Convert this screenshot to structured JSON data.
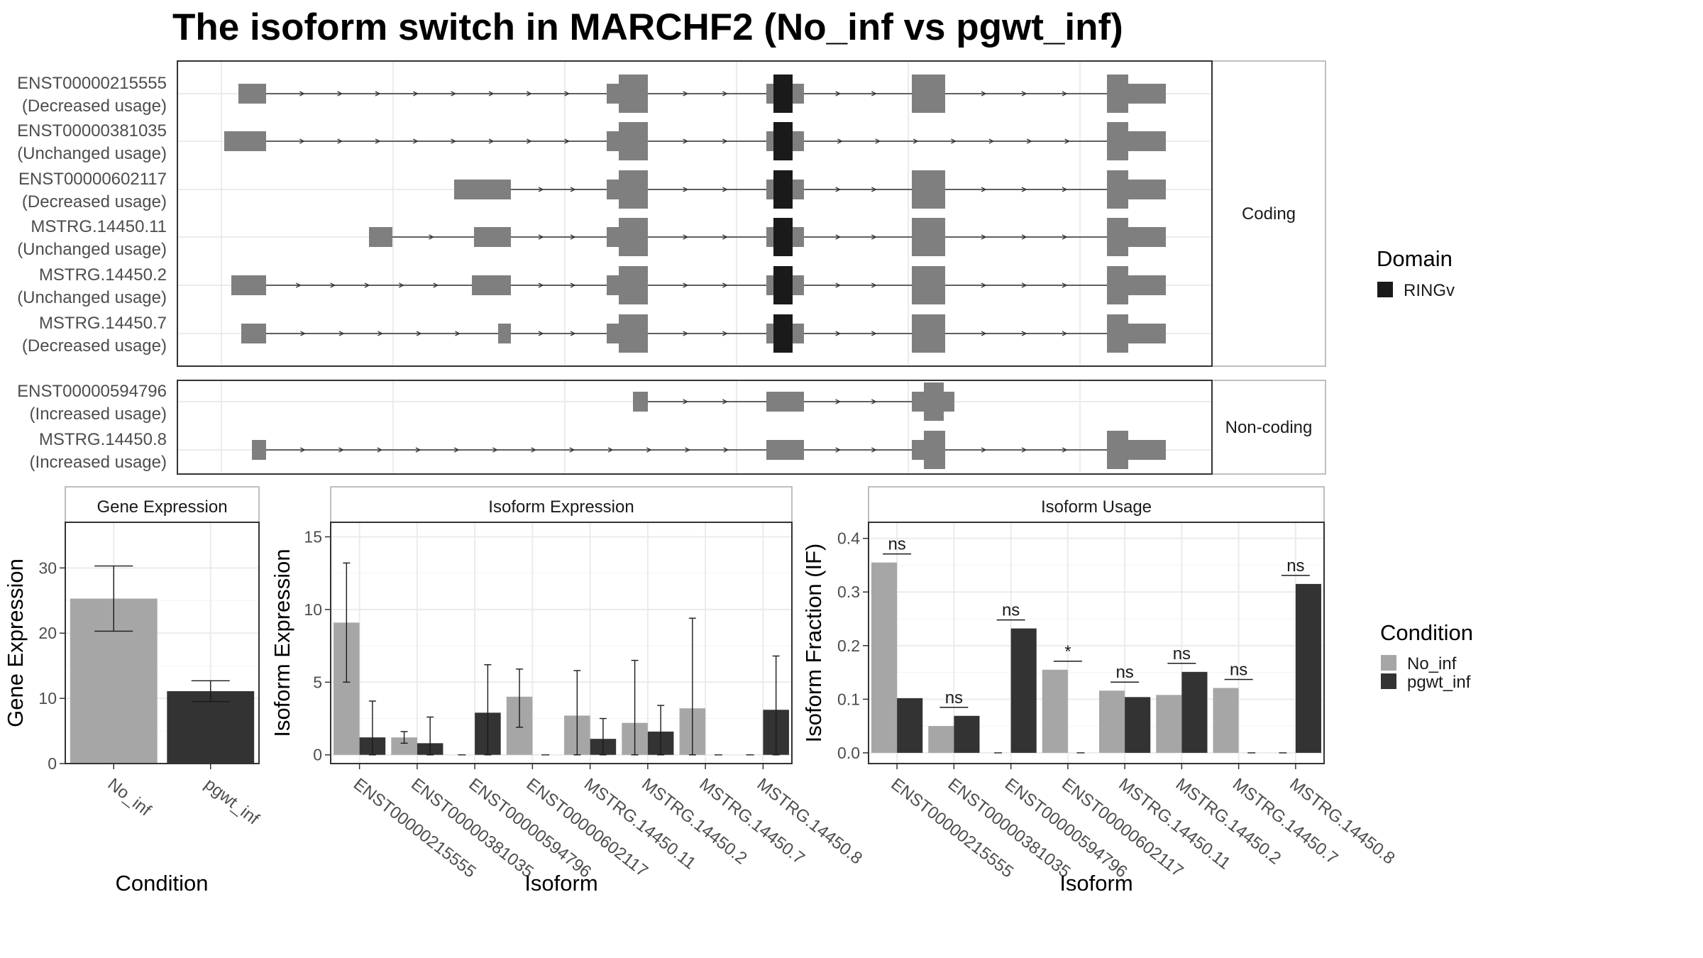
{
  "title": "The isoform switch in MARCHF2 (No_inf vs pgwt_inf)",
  "colors": {
    "exon": "#7f7f7f",
    "domain": "#1a1a1a",
    "no_inf": "#a6a6a6",
    "pgwt_inf": "#333333",
    "grid": "#ebebeb",
    "panel_border": "#333333",
    "strip_border": "#aaaaaa"
  },
  "structure": {
    "coding_label": "Coding",
    "noncoding_label": "Non-coding",
    "domain_legend": {
      "title": "Domain",
      "items": [
        {
          "name": "RINGv"
        }
      ]
    },
    "coding": [
      {
        "id": "ENST00000215555",
        "status": "(Decreased usage)"
      },
      {
        "id": "ENST00000381035",
        "status": "(Unchanged usage)"
      },
      {
        "id": "ENST00000602117",
        "status": "(Decreased usage)"
      },
      {
        "id": "MSTRG.14450.11",
        "status": "(Unchanged usage)"
      },
      {
        "id": "MSTRG.14450.2",
        "status": "(Unchanged usage)"
      },
      {
        "id": "MSTRG.14450.7",
        "status": "(Decreased usage)"
      }
    ],
    "noncoding": [
      {
        "id": "ENST00000594796",
        "status": "(Increased usage)"
      },
      {
        "id": "MSTRG.14450.8",
        "status": "(Increased usage)"
      }
    ]
  },
  "chart_data": [
    {
      "type": "bar",
      "title": "Gene Expression",
      "xlabel": "Condition",
      "ylabel": "Gene Expression",
      "categories": [
        "No_inf",
        "pgwt_inf"
      ],
      "values": [
        25.3,
        11.1
      ],
      "error_low": [
        20.3,
        9.5
      ],
      "error_high": [
        30.3,
        12.7
      ],
      "ylim": [
        0,
        37
      ],
      "yticks": [
        0,
        10,
        20,
        30
      ]
    },
    {
      "type": "bar",
      "title": "Isoform Expression",
      "xlabel": "Isoform",
      "ylabel": "Isoform Expression",
      "categories": [
        "ENST00000215555",
        "ENST00000381035",
        "ENST00000594796",
        "ENST00000602117",
        "MSTRG.14450.11",
        "MSTRG.14450.2",
        "MSTRG.14450.7",
        "MSTRG.14450.8"
      ],
      "series": [
        {
          "name": "No_inf",
          "values": [
            9.1,
            1.2,
            0,
            4.0,
            2.7,
            2.2,
            3.2,
            0
          ],
          "error_low": [
            5.0,
            0.8,
            0,
            1.9,
            0,
            0,
            0,
            0
          ],
          "error_high": [
            13.2,
            1.6,
            0,
            5.9,
            5.8,
            6.5,
            9.4,
            0
          ]
        },
        {
          "name": "pgwt_inf",
          "values": [
            1.2,
            0.8,
            2.9,
            0,
            1.1,
            1.6,
            0,
            3.1
          ],
          "error_low": [
            0,
            0,
            0,
            0,
            0,
            0,
            0,
            0
          ],
          "error_high": [
            3.7,
            2.6,
            6.2,
            0,
            2.5,
            3.4,
            0,
            6.8
          ]
        }
      ],
      "ylim": [
        -0.6,
        16
      ],
      "yticks": [
        0,
        5,
        10,
        15
      ]
    },
    {
      "type": "bar",
      "title": "Isoform Usage",
      "xlabel": "Isoform",
      "ylabel": "Isoform Fraction (IF)",
      "categories": [
        "ENST00000215555",
        "ENST00000381035",
        "ENST00000594796",
        "ENST00000602117",
        "MSTRG.14450.11",
        "MSTRG.14450.2",
        "MSTRG.14450.7",
        "MSTRG.14450.8"
      ],
      "series": [
        {
          "name": "No_inf",
          "values": [
            0.355,
            0.05,
            0,
            0.155,
            0.116,
            0.108,
            0.121,
            0
          ]
        },
        {
          "name": "pgwt_inf",
          "values": [
            0.102,
            0.069,
            0.232,
            0,
            0.104,
            0.151,
            0,
            0.315
          ]
        }
      ],
      "significance": [
        "ns",
        "ns",
        "ns",
        "*",
        "ns",
        "ns",
        "ns",
        "ns"
      ],
      "ylim": [
        -0.02,
        0.43
      ],
      "yticks": [
        0.0,
        0.1,
        0.2,
        0.3,
        0.4
      ],
      "ytick_labels": [
        "0.0",
        "0.1",
        "0.2",
        "0.3",
        "0.4"
      ]
    }
  ],
  "condition_legend": {
    "title": "Condition",
    "items": [
      "No_inf",
      "pgwt_inf"
    ]
  }
}
